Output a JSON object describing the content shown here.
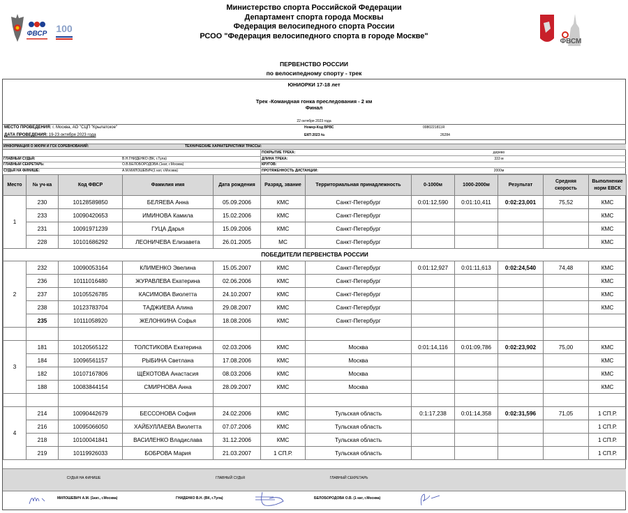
{
  "header": {
    "lines": [
      "Министерство спорта Российской Федерации",
      "Департамент спорта города Москвы",
      "Федерация велосипедного спорта России",
      "РСОО \"Федерация велосипедного спорта в городе Москве\""
    ],
    "logos_left": [
      "Герб Минспорта",
      "ФВСР",
      "100 лет Министерство спорта Российской Федерации"
    ],
    "logos_right": [
      "Герб Москвы",
      "ФВСМ"
    ]
  },
  "event": {
    "title": "ПЕРВЕНСТВО РОССИИ",
    "subtitle": "по велосипедному спорту - трек",
    "category": "ЮНИОРКИ 17-18 лет",
    "discipline": "Трек -Командная гонка преследования - 2 км",
    "stage": "Финал",
    "date": "22 октября 2023 года"
  },
  "info": {
    "venue_label": "МЕСТО ПРОВЕДЕНИЯ:",
    "venue": "г. Москва, АО \"СЦП \"Крылатское\"",
    "dates_label": "ДАТА ПРОВЕДЕНИЯ:",
    "dates": "19-23 октября 2023 года",
    "code_label": "Номер-Код ВРВС",
    "code": "0080221811Я",
    "ekp_label": "ЕКП 2023 №",
    "ekp": "26284",
    "jury_header": "ИНФОРМАЦИЯ О ЖЮРИ И ГСК СОРЕВНОВАНИЙ:",
    "track_header": "ТЕХНИЧЕСКИЕ ХАРАКТЕРИСТИКИ ТРАССЫ:",
    "jury": [
      {
        "label": "ГЛАВНЫЙ СУДЬЯ:",
        "value": "В.Н.ГНИДЕНКО (ВК, г.Тула)"
      },
      {
        "label": "ГЛАВНЫЙ СЕКРЕТАРЬ:",
        "value": "О.В.БЕЛОБОРОДОВА (1кат, г.Москва)"
      },
      {
        "label": "СУДЬЯ НА ФИНИШЕ:",
        "value": "А.М.МИЛОШЕВИЧ(1 кат, г.Москва)"
      }
    ],
    "track": [
      {
        "label": "ПОКРЫТИЕ ТРЕКА:",
        "value": "дерево"
      },
      {
        "label": "ДЛИНА ТРЕКА:",
        "value": "333 м"
      },
      {
        "label": "КРУГОВ:",
        "value": ""
      },
      {
        "label": "ПРОТЯЖЕННОСТЬ ДИСТАНЦИИ:",
        "value": "2000м"
      }
    ]
  },
  "table": {
    "columns": [
      "Место",
      "№ уч-ка",
      "Код ФВСР",
      "Фамилия имя",
      "Дата рождения",
      "Разряд, звание",
      "Территориальная принадлежность",
      "0-1000м",
      "1000-2000м",
      "Результат",
      "Средняя скорость",
      "Выполнение норм ЕВСК"
    ],
    "winners_label": "ПОБЕДИТЕЛИ ПЕРВЕНСТВА РОССИИ",
    "teams": [
      {
        "place": "1",
        "region": "Санкт-Петербург",
        "split1": "0:01:12,590",
        "split2": "0:01:10,411",
        "result": "0:02:23,001",
        "speed": "75,52",
        "riders": [
          [
            "230",
            "10128589850",
            "БЕЛЯЕВА Анна",
            "05.09.2006",
            "КМС",
            "КМС"
          ],
          [
            "233",
            "10090420653",
            "ИМИНОВА Камила",
            "15.02.2006",
            "КМС",
            "КМС"
          ],
          [
            "231",
            "10091971239",
            "ГУЦА Дарья",
            "15.09.2006",
            "КМС",
            "КМС"
          ],
          [
            "228",
            "10101686292",
            "ЛЕОНИЧЕВА Елизавета",
            "26.01.2005",
            "МС",
            "КМС"
          ]
        ]
      },
      {
        "place": "2",
        "region": "Санкт-Петербург",
        "split1": "0:01:12,927",
        "split2": "0:01:11,613",
        "result": "0:02:24,540",
        "speed": "74,48",
        "riders": [
          [
            "232",
            "10090053164",
            "КЛИМЕНКО Эвелина",
            "15.05.2007",
            "КМС",
            "КМС"
          ],
          [
            "236",
            "10111016480",
            "ЖУРАВЛЕВА Екатерина",
            "02.06.2006",
            "КМС",
            "КМС"
          ],
          [
            "237",
            "10105526785",
            "КАСИМОВА Виолетта",
            "24.10.2007",
            "КМС",
            "КМС"
          ],
          [
            "238",
            "10123783704",
            "ТАДЖИЕВА Алина",
            "29.08.2007",
            "КМС",
            "КМС"
          ],
          [
            "235",
            "10111058920",
            "ЖЕЛОНКИНА Софья",
            "18.08.2006",
            "КМС",
            ""
          ]
        ]
      },
      {
        "place": "3",
        "region": "Москва",
        "split1": "0:01:14,116",
        "split2": "0:01:09,786",
        "result": "0:02:23,902",
        "speed": "75,00",
        "riders": [
          [
            "181",
            "10120565122",
            "ТОЛСТИКОВА Екатерина",
            "02.03.2006",
            "КМС",
            "КМС"
          ],
          [
            "184",
            "10096561157",
            "РЫБИНА Светлана",
            "17.08.2006",
            "КМС",
            "КМС"
          ],
          [
            "182",
            "10107167806",
            "ЩЁКОТОВА Анастасия",
            "08.03.2006",
            "КМС",
            "КМС"
          ],
          [
            "188",
            "10083844154",
            "СМИРНОВА Анна",
            "28.09.2007",
            "КМС",
            "КМС"
          ]
        ]
      },
      {
        "place": "4",
        "region": "Тульская область",
        "split1": "0:1:17,238",
        "split2": "0:01:14,358",
        "result": "0:02:31,596",
        "speed": "71,05",
        "riders": [
          [
            "214",
            "10090442679",
            "БЕССОНОВА София",
            "24.02.2006",
            "КМС",
            "1 СП.Р."
          ],
          [
            "216",
            "10095066050",
            "ХАЙБУЛЛАЕВА Виолетта",
            "07.07.2006",
            "КМС",
            "1 СП.Р."
          ],
          [
            "218",
            "10100041841",
            "ВАСИЛЕНКО Владислава",
            "31.12.2006",
            "КМС",
            "1 СП.Р."
          ],
          [
            "219",
            "10119926033",
            "БОБРОВА Мария",
            "21.03.2007",
            "1 СП.Р.",
            "1 СП.Р."
          ]
        ]
      }
    ]
  },
  "footer": {
    "roles": [
      "СУДЬЯ НА ФИНИШЕ",
      "ГЛАВНЫЙ СУДЬЯ",
      "ГЛАВНЫЙ СЕКРЕТАРЬ"
    ],
    "names": [
      "МИЛОШЕВИЧ А.М. (1кат., г.Москва)",
      "ГНИДЕНКО В.Н. (ВК, г.Тула)",
      "БЕЛОБОРОДОВА О.В. (1 кат, г.Москва)"
    ]
  },
  "colors": {
    "header_gray": "#d9d9d9",
    "signature_ink": "#3b4bb0",
    "flag_red": "#d52b1e",
    "flag_blue": "#1c3f94"
  }
}
